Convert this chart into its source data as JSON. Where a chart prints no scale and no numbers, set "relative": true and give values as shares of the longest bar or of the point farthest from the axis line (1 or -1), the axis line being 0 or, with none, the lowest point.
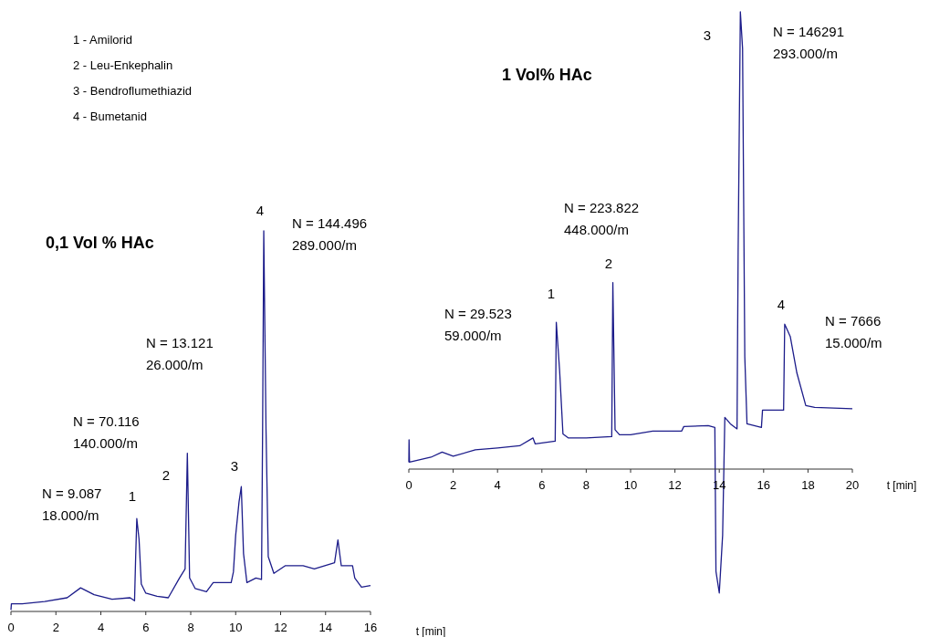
{
  "chart_data": [
    {
      "type": "line",
      "relative": true,
      "title": "0,1 Vol % HAc",
      "xlabel": "t [min]",
      "xlim": [
        0,
        16
      ],
      "xticks": [
        0,
        2,
        4,
        6,
        8,
        10,
        12,
        14,
        16
      ],
      "x": [
        0,
        0.02,
        0.5,
        1.5,
        2.5,
        3.1,
        3.7,
        4.5,
        5.3,
        5.5,
        5.55,
        5.6,
        5.7,
        5.8,
        6.0,
        6.5,
        7.0,
        7.5,
        7.75,
        7.85,
        7.95,
        8.2,
        8.7,
        9.0,
        9.8,
        9.9,
        10.0,
        10.15,
        10.25,
        10.35,
        10.5,
        10.9,
        11.15,
        11.2,
        11.25,
        11.35,
        11.45,
        11.7,
        12.2,
        13.0,
        13.5,
        14.4,
        14.55,
        14.7,
        15.2,
        15.3,
        15.6,
        16
      ],
      "series": [
        {
          "color": "#1c1c8a",
          "values": [
            0.004,
            0.02,
            0.02,
            0.026,
            0.036,
            0.062,
            0.044,
            0.032,
            0.036,
            0.028,
            0.144,
            0.244,
            0.19,
            0.072,
            0.048,
            0.04,
            0.036,
            0.088,
            0.112,
            0.416,
            0.088,
            0.06,
            0.052,
            0.076,
            0.076,
            0.104,
            0.2,
            0.288,
            0.328,
            0.152,
            0.076,
            0.088,
            0.084,
            0.488,
            1.0,
            0.48,
            0.144,
            0.1,
            0.12,
            0.12,
            0.112,
            0.128,
            0.188,
            0.12,
            0.12,
            0.088,
            0.064,
            0.068
          ]
        }
      ],
      "annotations": [
        "1 - Amilorid",
        "2 - Leu-Enkephalin",
        "3 - Bendroflumethiazid",
        "4 - Bumetanid",
        "1",
        "2",
        "3",
        "4",
        "N = 9.087\n18.000/m",
        "N = 70.116\n140.000/m",
        "N = 13.121\n26.000/m",
        "N = 144.496\n289.000/m"
      ]
    },
    {
      "type": "line",
      "relative": true,
      "title": "1 Vol% HAc",
      "xlabel": "t [min]",
      "xlim": [
        0,
        20
      ],
      "xticks": [
        0,
        2,
        4,
        6,
        8,
        10,
        12,
        14,
        16,
        18,
        20
      ],
      "x": [
        0,
        0.01,
        0.03,
        1,
        1.5,
        2,
        3,
        4,
        5,
        5.6,
        5.7,
        6.6,
        6.65,
        6.8,
        6.95,
        7.2,
        8,
        9.15,
        9.2,
        9.3,
        9.5,
        10,
        11,
        12.3,
        12.4,
        13.5,
        13.8,
        13.85,
        14.0,
        14.15,
        14.25,
        14.5,
        14.8,
        14.85,
        14.95,
        15.05,
        15.15,
        15.25,
        15.9,
        15.95,
        16.9,
        16.95,
        17.2,
        17.5,
        17.9,
        18.3,
        20
      ],
      "series": [
        {
          "color": "#1c1c8a",
          "values": [
            0.015,
            0.064,
            0.015,
            0.026,
            0.037,
            0.028,
            0.042,
            0.046,
            0.051,
            0.068,
            0.055,
            0.061,
            0.321,
            0.215,
            0.077,
            0.068,
            0.068,
            0.071,
            0.408,
            0.086,
            0.075,
            0.075,
            0.083,
            0.083,
            0.093,
            0.095,
            0.091,
            -0.224,
            -0.271,
            -0.145,
            0.113,
            0.099,
            0.088,
            0.476,
            1.0,
            0.92,
            0.246,
            0.099,
            0.091,
            0.129,
            0.129,
            0.317,
            0.29,
            0.21,
            0.139,
            0.135,
            0.132
          ]
        }
      ],
      "annotations": [
        "1",
        "2",
        "3",
        "4",
        "N = 29.523\n59.000/m",
        "N = 223.822\n448.000/m",
        "N = 146291\n293.000/m",
        "N = 7666\n15.000/m"
      ]
    }
  ]
}
